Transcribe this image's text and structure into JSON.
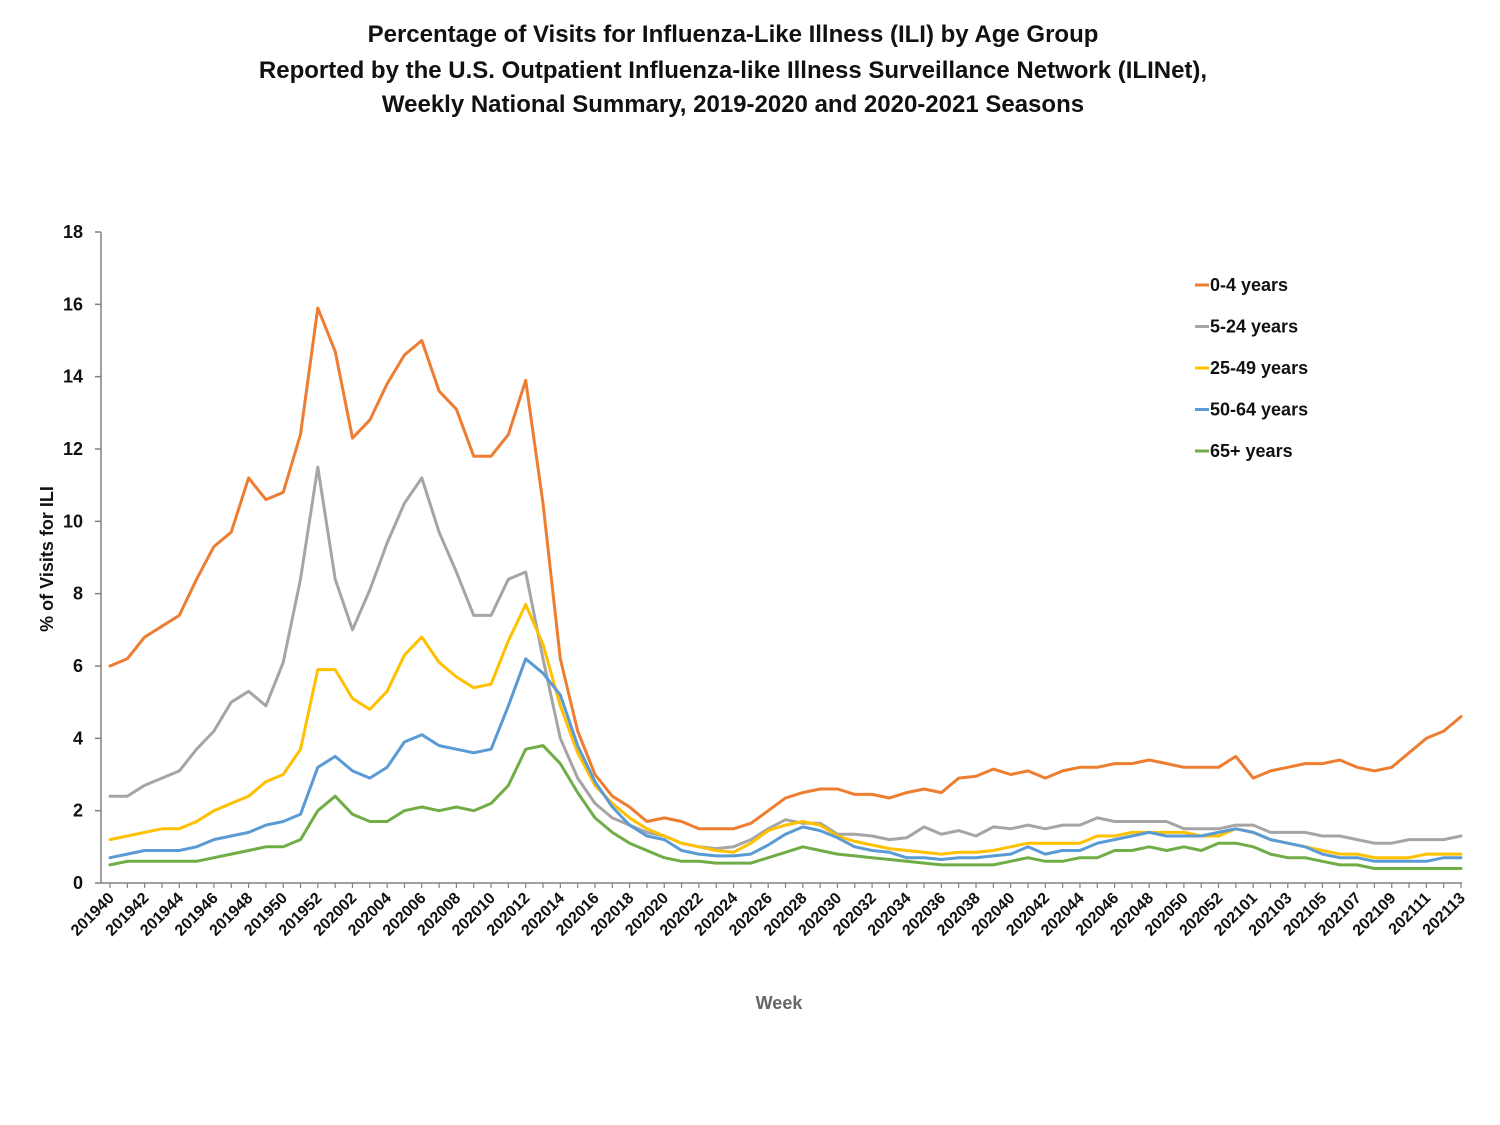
{
  "chart_data": {
    "type": "line",
    "title": [
      "Percentage of Visits for Influenza-Like Illness (ILI) by Age Group",
      "Reported by the U.S. Outpatient Influenza-like Illness Surveillance Network (ILINet),",
      "Weekly National Summary, 2019-2020 and 2020-2021 Seasons"
    ],
    "xlabel": "Week",
    "ylabel": "% of Visits for ILI",
    "ylim": [
      0,
      18
    ],
    "yticks": [
      0,
      2,
      4,
      6,
      8,
      10,
      12,
      14,
      16,
      18
    ],
    "grid": false,
    "legend_position": "top-right",
    "x": [
      "201940",
      "201941",
      "201942",
      "201943",
      "201944",
      "201945",
      "201946",
      "201947",
      "201948",
      "201949",
      "201950",
      "201951",
      "201952",
      "202001",
      "202002",
      "202003",
      "202004",
      "202005",
      "202006",
      "202007",
      "202008",
      "202009",
      "202010",
      "202011",
      "202012",
      "202013",
      "202014",
      "202015",
      "202016",
      "202017",
      "202018",
      "202019",
      "202020",
      "202021",
      "202022",
      "202023",
      "202024",
      "202025",
      "202026",
      "202027",
      "202028",
      "202029",
      "202030",
      "202031",
      "202032",
      "202033",
      "202034",
      "202035",
      "202036",
      "202037",
      "202038",
      "202039",
      "202040",
      "202041",
      "202042",
      "202043",
      "202044",
      "202045",
      "202046",
      "202047",
      "202048",
      "202049",
      "202050",
      "202051",
      "202052",
      "202053",
      "202101",
      "202102",
      "202103",
      "202104",
      "202105",
      "202106",
      "202107",
      "202108",
      "202109",
      "202110",
      "202111",
      "202112",
      "202113"
    ],
    "xtick_labels": [
      "201940",
      "201942",
      "201944",
      "201946",
      "201948",
      "201950",
      "201952",
      "202002",
      "202004",
      "202006",
      "202008",
      "202010",
      "202012",
      "202014",
      "202016",
      "202018",
      "202020",
      "202022",
      "202024",
      "202026",
      "202028",
      "202030",
      "202032",
      "202034",
      "202036",
      "202038",
      "202040",
      "202042",
      "202044",
      "202046",
      "202048",
      "202050",
      "202052",
      "202101",
      "202103",
      "202105",
      "202107",
      "202109",
      "202111",
      "202113"
    ],
    "series": [
      {
        "name": "0-4 years",
        "color": "#ED7D31",
        "values": [
          6.0,
          6.2,
          6.8,
          7.1,
          7.4,
          8.4,
          9.3,
          9.7,
          11.2,
          10.6,
          10.8,
          12.4,
          15.9,
          14.7,
          12.3,
          12.8,
          13.8,
          14.6,
          15.0,
          13.6,
          13.1,
          11.8,
          11.8,
          12.4,
          13.9,
          10.5,
          6.2,
          4.2,
          3.0,
          2.4,
          2.1,
          1.7,
          1.8,
          1.7,
          1.5,
          1.5,
          1.5,
          1.65,
          2.0,
          2.35,
          2.5,
          2.6,
          2.6,
          2.45,
          2.45,
          2.35,
          2.5,
          2.6,
          2.5,
          2.9,
          2.95,
          3.15,
          3.0,
          3.1,
          2.9,
          3.1,
          3.2,
          3.2,
          3.3,
          3.3,
          3.4,
          3.3,
          3.2,
          3.2,
          3.2,
          3.5,
          2.9,
          3.1,
          3.2,
          3.3,
          3.3,
          3.4,
          3.2,
          3.1,
          3.2,
          3.6,
          4.0,
          4.2,
          4.6
        ]
      },
      {
        "name": "5-24 years",
        "color": "#A5A5A5",
        "values": [
          2.4,
          2.4,
          2.7,
          2.9,
          3.1,
          3.7,
          4.2,
          5.0,
          5.3,
          4.9,
          6.1,
          8.4,
          11.5,
          8.4,
          7.0,
          8.1,
          9.4,
          10.5,
          11.2,
          9.7,
          8.6,
          7.4,
          7.4,
          8.4,
          8.6,
          6.2,
          4.0,
          2.9,
          2.2,
          1.8,
          1.6,
          1.4,
          1.3,
          1.1,
          1.0,
          0.95,
          1.0,
          1.2,
          1.5,
          1.75,
          1.65,
          1.65,
          1.35,
          1.35,
          1.3,
          1.2,
          1.25,
          1.55,
          1.35,
          1.45,
          1.3,
          1.55,
          1.5,
          1.6,
          1.5,
          1.6,
          1.6,
          1.8,
          1.7,
          1.7,
          1.7,
          1.7,
          1.5,
          1.5,
          1.5,
          1.6,
          1.6,
          1.4,
          1.4,
          1.4,
          1.3,
          1.3,
          1.2,
          1.1,
          1.1,
          1.2,
          1.2,
          1.2,
          1.3
        ]
      },
      {
        "name": "25-49 years",
        "color": "#FFC000",
        "values": [
          1.2,
          1.3,
          1.4,
          1.5,
          1.5,
          1.7,
          2.0,
          2.2,
          2.4,
          2.8,
          3.0,
          3.7,
          5.9,
          5.9,
          5.1,
          4.8,
          5.3,
          6.3,
          6.8,
          6.1,
          5.7,
          5.4,
          5.5,
          6.7,
          7.7,
          6.6,
          4.9,
          3.6,
          2.7,
          2.2,
          1.8,
          1.5,
          1.3,
          1.1,
          1.0,
          0.9,
          0.85,
          1.1,
          1.45,
          1.6,
          1.7,
          1.6,
          1.3,
          1.15,
          1.05,
          0.95,
          0.9,
          0.85,
          0.8,
          0.85,
          0.85,
          0.9,
          1.0,
          1.1,
          1.1,
          1.1,
          1.1,
          1.3,
          1.3,
          1.4,
          1.4,
          1.4,
          1.4,
          1.3,
          1.3,
          1.5,
          1.4,
          1.2,
          1.1,
          1.0,
          0.9,
          0.8,
          0.8,
          0.7,
          0.7,
          0.7,
          0.8,
          0.8,
          0.8
        ]
      },
      {
        "name": "50-64 years",
        "color": "#5B9BD5",
        "values": [
          0.7,
          0.8,
          0.9,
          0.9,
          0.9,
          1.0,
          1.2,
          1.3,
          1.4,
          1.6,
          1.7,
          1.9,
          3.2,
          3.5,
          3.1,
          2.9,
          3.2,
          3.9,
          4.1,
          3.8,
          3.7,
          3.6,
          3.7,
          4.9,
          6.2,
          5.8,
          5.2,
          3.8,
          2.8,
          2.1,
          1.6,
          1.3,
          1.2,
          0.9,
          0.8,
          0.75,
          0.75,
          0.8,
          1.05,
          1.35,
          1.55,
          1.45,
          1.25,
          1.0,
          0.9,
          0.85,
          0.7,
          0.7,
          0.65,
          0.7,
          0.7,
          0.75,
          0.8,
          1.0,
          0.8,
          0.9,
          0.9,
          1.1,
          1.2,
          1.3,
          1.4,
          1.3,
          1.3,
          1.3,
          1.4,
          1.5,
          1.4,
          1.2,
          1.1,
          1.0,
          0.8,
          0.7,
          0.7,
          0.6,
          0.6,
          0.6,
          0.6,
          0.7,
          0.7
        ]
      },
      {
        "name": "65+ years",
        "color": "#70AD47",
        "values": [
          0.5,
          0.6,
          0.6,
          0.6,
          0.6,
          0.6,
          0.7,
          0.8,
          0.9,
          1.0,
          1.0,
          1.2,
          2.0,
          2.4,
          1.9,
          1.7,
          1.7,
          2.0,
          2.1,
          2.0,
          2.1,
          2.0,
          2.2,
          2.7,
          3.7,
          3.8,
          3.3,
          2.5,
          1.8,
          1.4,
          1.1,
          0.9,
          0.7,
          0.6,
          0.6,
          0.55,
          0.55,
          0.55,
          0.7,
          0.85,
          1.0,
          0.9,
          0.8,
          0.75,
          0.7,
          0.65,
          0.6,
          0.55,
          0.5,
          0.5,
          0.5,
          0.5,
          0.6,
          0.7,
          0.6,
          0.6,
          0.7,
          0.7,
          0.9,
          0.9,
          1.0,
          0.9,
          1.0,
          0.9,
          1.1,
          1.1,
          1.0,
          0.8,
          0.7,
          0.7,
          0.6,
          0.5,
          0.5,
          0.4,
          0.4,
          0.4,
          0.4,
          0.4,
          0.4
        ]
      }
    ]
  }
}
